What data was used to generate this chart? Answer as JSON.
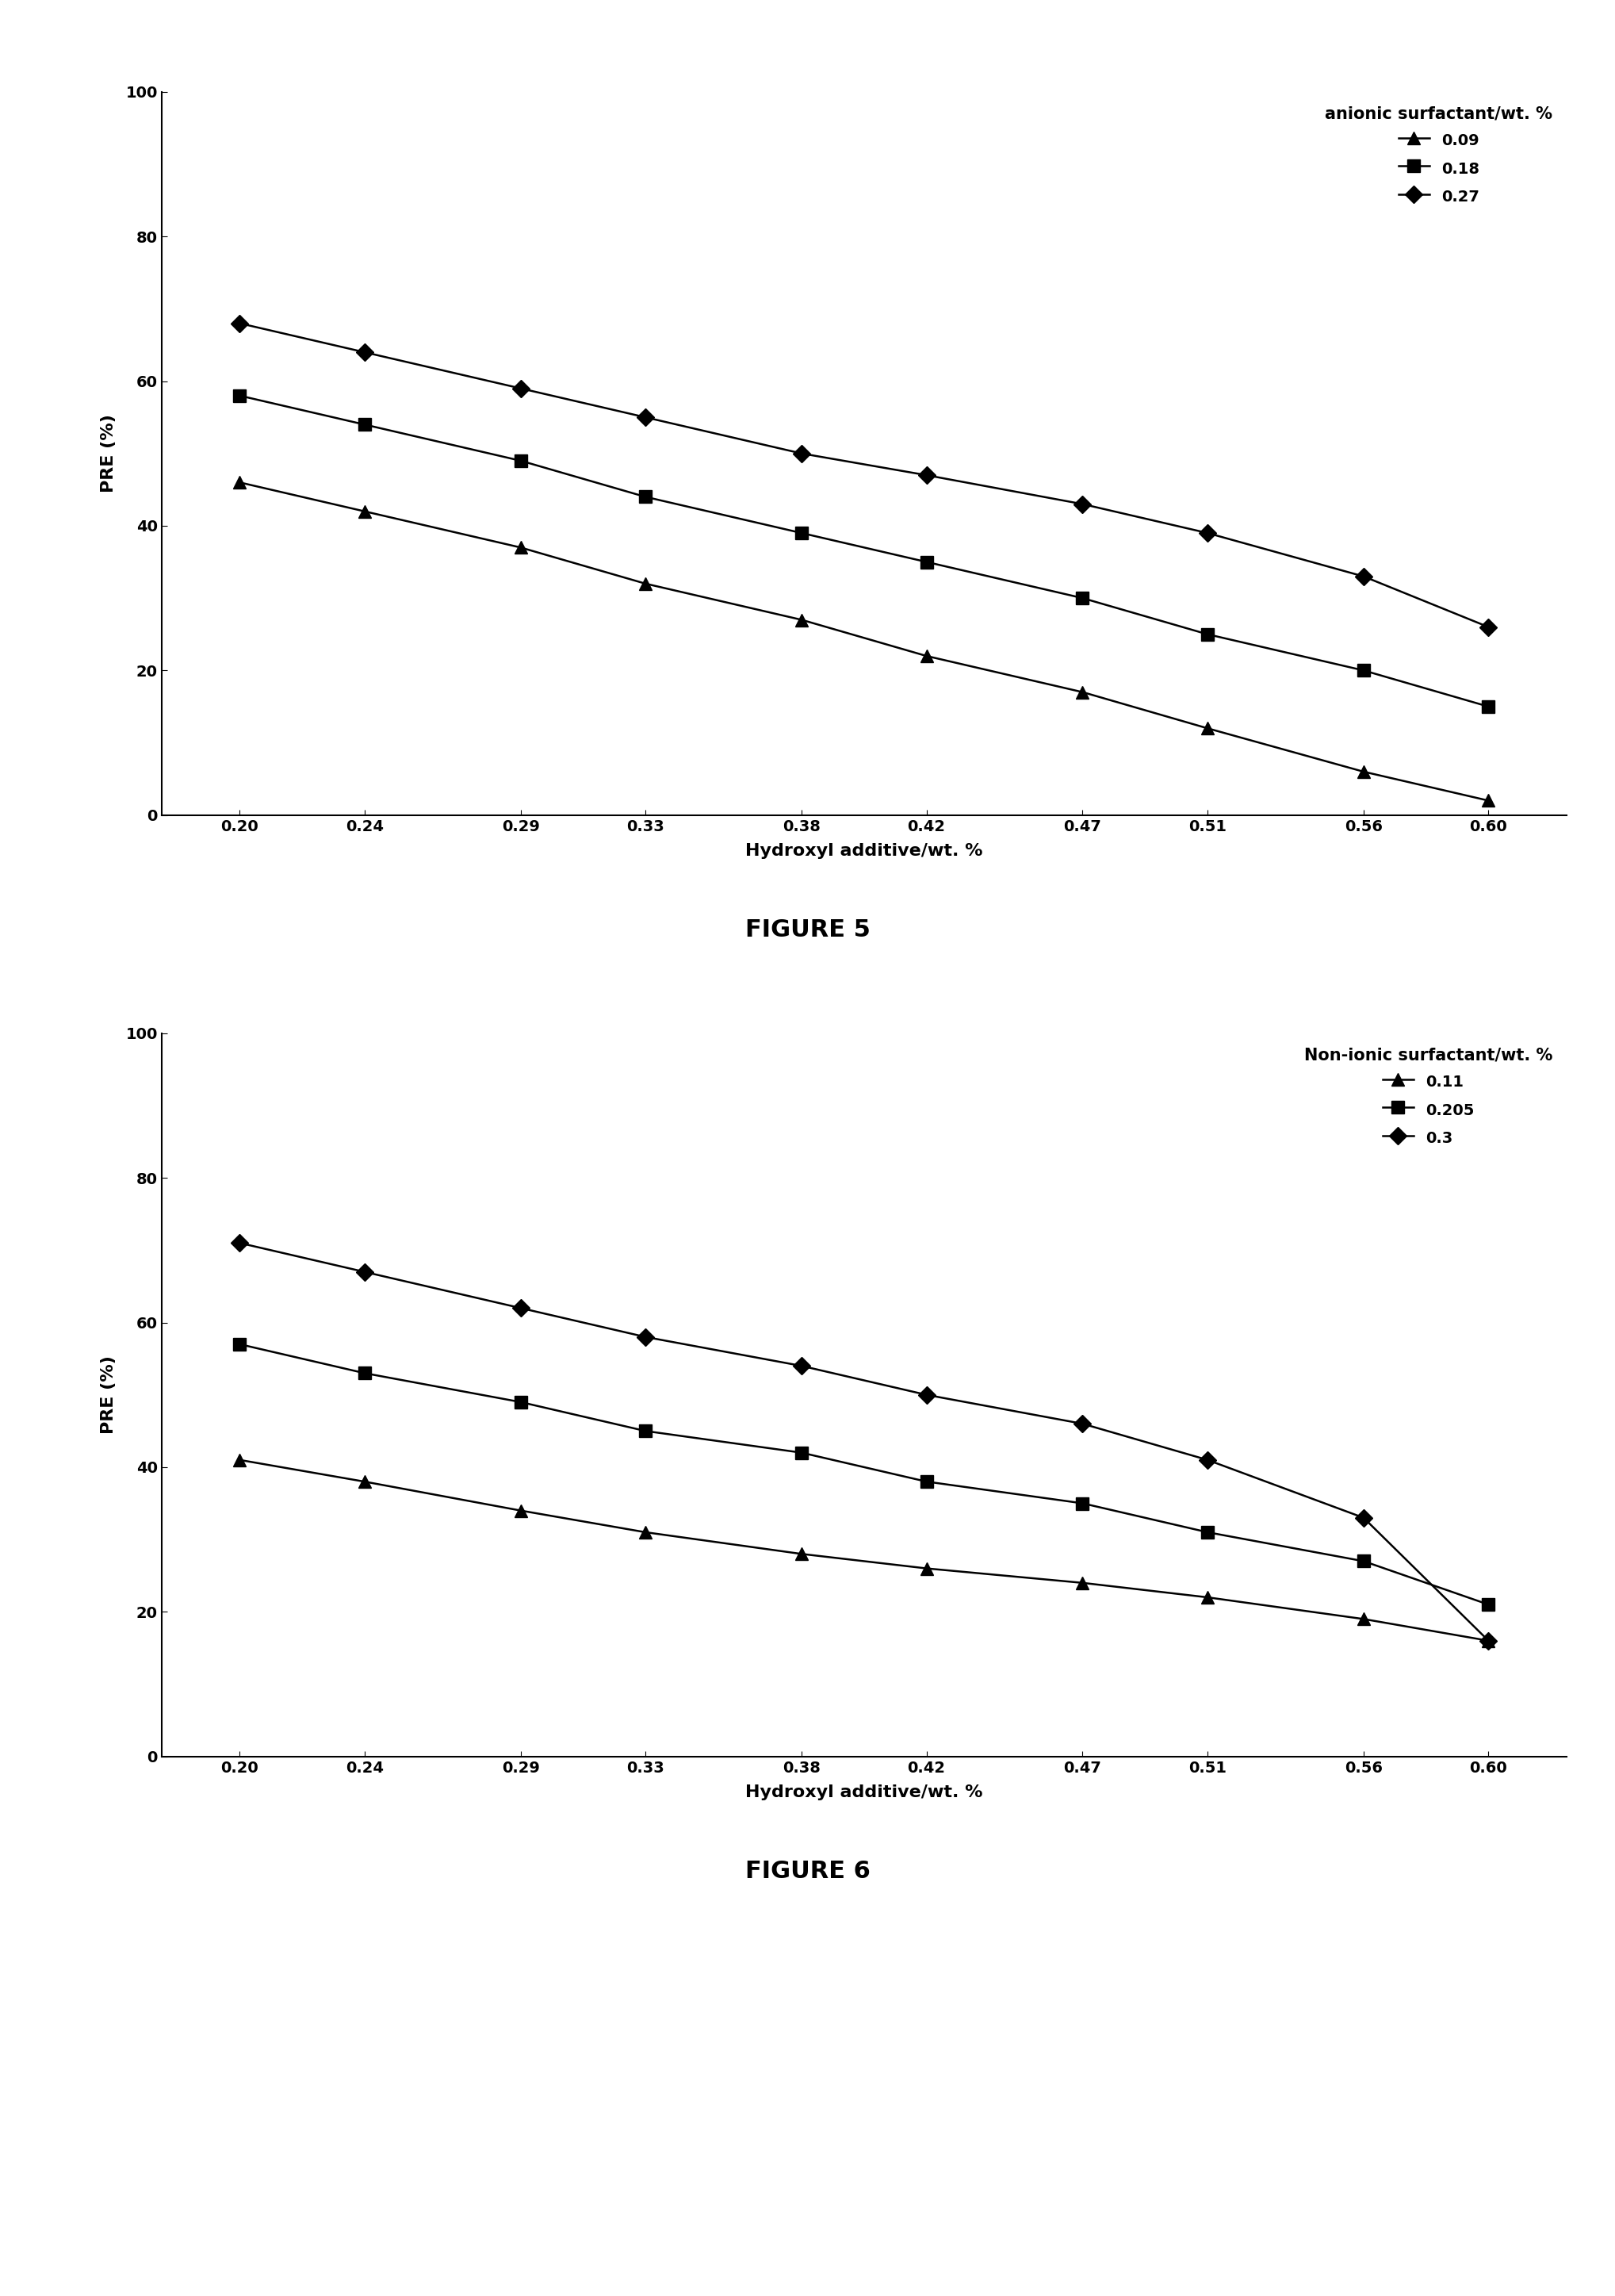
{
  "x_values": [
    0.2,
    0.24,
    0.29,
    0.33,
    0.38,
    0.42,
    0.47,
    0.51,
    0.56,
    0.6
  ],
  "x_tick_labels": [
    "0.20",
    "0.24",
    "0.29",
    "0.33",
    "0.38",
    "0.42",
    "0.47",
    "0.51",
    "0.56",
    "0.60"
  ],
  "fig5": {
    "title": "FIGURE 5",
    "legend_title": "anionic surfactant/wt. %",
    "xlabel": "Hydroxyl additive/wt. %",
    "ylabel": "PRE (%)",
    "ylim": [
      0,
      100
    ],
    "series": [
      {
        "label": "0.09",
        "marker": "^",
        "color": "#000000",
        "y": [
          46,
          42,
          37,
          32,
          27,
          22,
          17,
          12,
          6,
          2
        ]
      },
      {
        "label": "0.18",
        "marker": "s",
        "color": "#000000",
        "y": [
          58,
          54,
          49,
          44,
          39,
          35,
          30,
          25,
          20,
          15
        ]
      },
      {
        "label": "0.27",
        "marker": "D",
        "color": "#000000",
        "y": [
          68,
          64,
          59,
          55,
          50,
          47,
          43,
          39,
          33,
          26
        ]
      }
    ]
  },
  "fig6": {
    "title": "FIGURE 6",
    "legend_title": "Non-ionic surfactant/wt. %",
    "xlabel": "Hydroxyl additive/wt. %",
    "ylabel": "PRE (%)",
    "ylim": [
      0,
      100
    ],
    "series": [
      {
        "label": "0.11",
        "marker": "^",
        "color": "#000000",
        "y": [
          41,
          38,
          34,
          31,
          28,
          26,
          24,
          22,
          19,
          16
        ]
      },
      {
        "label": "0.205",
        "marker": "s",
        "color": "#000000",
        "y": [
          57,
          53,
          49,
          45,
          42,
          38,
          35,
          31,
          27,
          21
        ]
      },
      {
        "label": "0.3",
        "marker": "D",
        "color": "#000000",
        "y": [
          71,
          67,
          62,
          58,
          54,
          50,
          46,
          41,
          33,
          16
        ]
      }
    ]
  },
  "background_color": "#ffffff",
  "markersize": 11,
  "linewidth": 1.8,
  "figure_title_fontsize": 22,
  "label_fontsize": 16,
  "tick_fontsize": 14,
  "legend_title_fontsize": 15,
  "legend_fontsize": 14
}
